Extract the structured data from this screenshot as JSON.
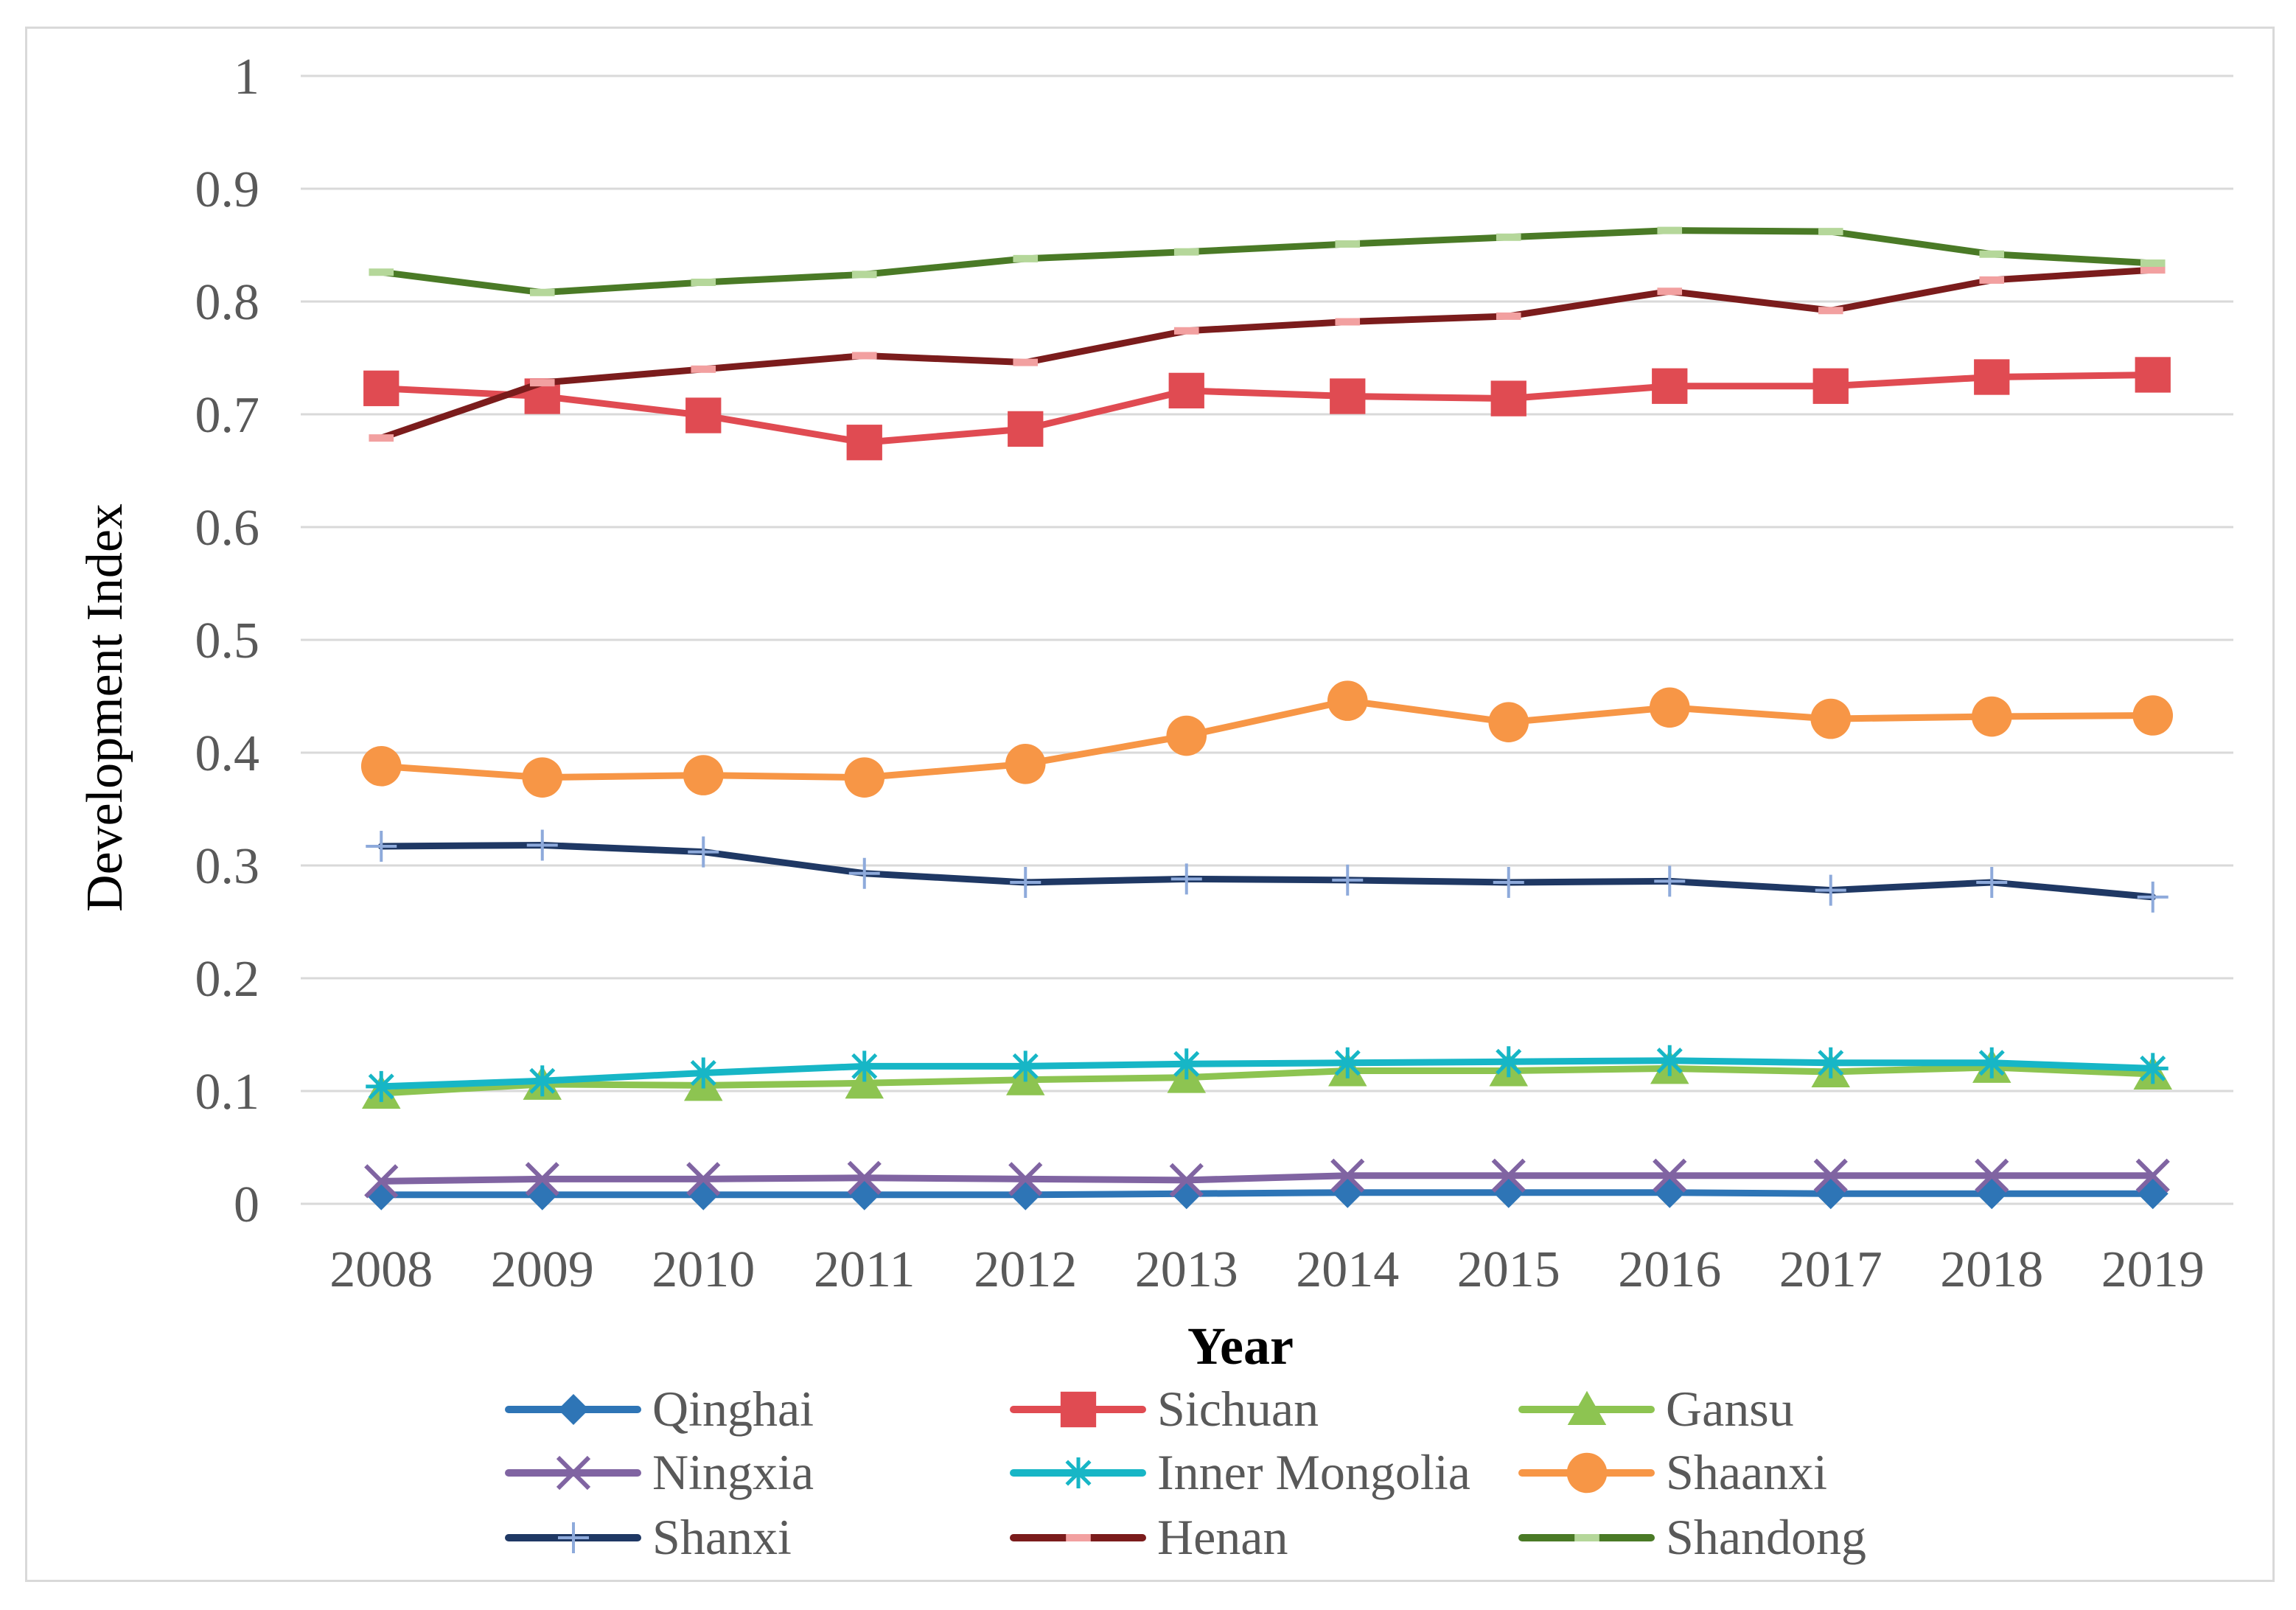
{
  "chart_data": {
    "type": "line",
    "title": "",
    "xlabel": "Year",
    "ylabel": "Development Index",
    "ylim": [
      0,
      1
    ],
    "yticks": [
      0,
      0.1,
      0.2,
      0.3,
      0.4,
      0.5,
      0.6,
      0.7,
      0.8,
      0.9,
      1
    ],
    "ytick_labels": [
      "0",
      "0.1",
      "0.2",
      "0.3",
      "0.4",
      "0.5",
      "0.6",
      "0.7",
      "0.8",
      "0.9",
      "1"
    ],
    "grid": true,
    "legend_position": "bottom",
    "categories": [
      "2008",
      "2009",
      "2010",
      "2011",
      "2012",
      "2013",
      "2014",
      "2015",
      "2016",
      "2017",
      "2018",
      "2019"
    ],
    "series": [
      {
        "name": "Qinghai",
        "marker": "diamond",
        "color": "#2e75b6",
        "values": [
          0.008,
          0.008,
          0.008,
          0.008,
          0.008,
          0.009,
          0.01,
          0.01,
          0.01,
          0.009,
          0.009,
          0.009
        ]
      },
      {
        "name": "Sichuan",
        "marker": "square",
        "color": "#e04b52",
        "values": [
          0.723,
          0.716,
          0.699,
          0.675,
          0.687,
          0.721,
          0.716,
          0.714,
          0.725,
          0.725,
          0.733,
          0.735
        ]
      },
      {
        "name": "Gansu",
        "marker": "triangle",
        "color": "#8dc451",
        "values": [
          0.098,
          0.106,
          0.105,
          0.107,
          0.11,
          0.112,
          0.118,
          0.118,
          0.12,
          0.117,
          0.121,
          0.115
        ]
      },
      {
        "name": "Ningxia",
        "marker": "x",
        "color": "#8064a2",
        "values": [
          0.02,
          0.022,
          0.022,
          0.023,
          0.022,
          0.021,
          0.025,
          0.025,
          0.025,
          0.025,
          0.025,
          0.025
        ]
      },
      {
        "name": "Inner Mongolia",
        "marker": "star",
        "color": "#17b6c6",
        "values": [
          0.104,
          0.109,
          0.116,
          0.122,
          0.122,
          0.124,
          0.125,
          0.126,
          0.127,
          0.125,
          0.125,
          0.12
        ]
      },
      {
        "name": "Shaanxi",
        "marker": "circle",
        "color": "#f79646",
        "values": [
          0.388,
          0.378,
          0.38,
          0.378,
          0.39,
          0.415,
          0.446,
          0.427,
          0.44,
          0.43,
          0.432,
          0.433
        ]
      },
      {
        "name": "Shanxi",
        "marker": "plus",
        "color": "#1f3864",
        "values": [
          0.317,
          0.318,
          0.312,
          0.293,
          0.285,
          0.288,
          0.287,
          0.285,
          0.286,
          0.278,
          0.285,
          0.272
        ]
      },
      {
        "name": "Henan",
        "marker": "dash",
        "color": "#7b1c1c",
        "marker_color": "#f2a0a0",
        "values": [
          0.679,
          0.728,
          0.74,
          0.752,
          0.746,
          0.774,
          0.782,
          0.787,
          0.809,
          0.792,
          0.819,
          0.828
        ]
      },
      {
        "name": "Shandong",
        "marker": "dash",
        "color": "#4a7a26",
        "marker_color": "#b5d79a",
        "values": [
          0.826,
          0.808,
          0.817,
          0.824,
          0.838,
          0.844,
          0.851,
          0.857,
          0.863,
          0.862,
          0.842,
          0.834
        ]
      }
    ]
  }
}
